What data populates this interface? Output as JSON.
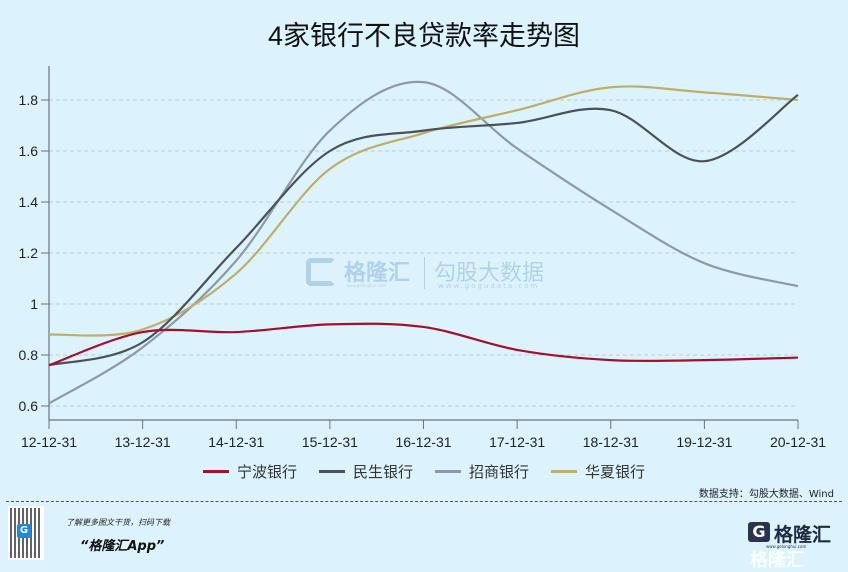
{
  "title": "4家银行不良贷款率走势图",
  "legend": [
    {
      "label": "宁波银行",
      "color": "#a50f2d"
    },
    {
      "label": "民生银行",
      "color": "#4b5257"
    },
    {
      "label": "招商银行",
      "color": "#8e9aa3"
    },
    {
      "label": "华夏银行",
      "color": "#bfae6a"
    }
  ],
  "source": "数据支持：勾股大数据、Wind",
  "watermark": {
    "brand": "格隆汇",
    "brand_url": "www.gelonghui.com",
    "data_brand": "勾股大数据",
    "data_url": "www.gogudata.com"
  },
  "footer": {
    "promo_line": "了解更多图文干货，扫码下载",
    "app_name": "“格隆汇App”",
    "qr_logo": "G",
    "brand_g": "G",
    "brand_name": "格隆汇",
    "brand_url": "www.gelonghui.com",
    "brand_ghost": "格隆汇"
  },
  "chart_data": {
    "type": "line",
    "title": "4家银行不良贷款率走势图",
    "xlabel": "",
    "ylabel": "",
    "x": [
      "12-12-31",
      "13-12-31",
      "14-12-31",
      "15-12-31",
      "16-12-31",
      "17-12-31",
      "18-12-31",
      "19-12-31",
      "20-12-31"
    ],
    "yticks": [
      0.6,
      0.8,
      1,
      1.2,
      1.4,
      1.6,
      1.8
    ],
    "ytick_labels": [
      "0.6",
      "0.8",
      "1",
      "1.2",
      "1.4",
      "1.6",
      "1.8"
    ],
    "ylim": [
      0.55,
      1.95
    ],
    "grid": "horizontal dashed",
    "smooth": true,
    "legend_position": "bottom",
    "series": [
      {
        "name": "宁波银行",
        "color": "#a50f2d",
        "values": [
          0.76,
          0.89,
          0.89,
          0.92,
          0.91,
          0.82,
          0.78,
          0.78,
          0.79
        ]
      },
      {
        "name": "民生银行",
        "color": "#4b5257",
        "values": [
          0.76,
          0.85,
          1.22,
          1.6,
          1.68,
          1.71,
          1.76,
          1.56,
          1.82
        ]
      },
      {
        "name": "招商银行",
        "color": "#8e9aa3",
        "values": [
          0.61,
          0.83,
          1.17,
          1.68,
          1.87,
          1.61,
          1.37,
          1.16,
          1.07
        ]
      },
      {
        "name": "华夏银行",
        "color": "#bfae6a",
        "values": [
          0.88,
          0.9,
          1.12,
          1.53,
          1.67,
          1.76,
          1.85,
          1.83,
          1.8
        ]
      }
    ]
  }
}
